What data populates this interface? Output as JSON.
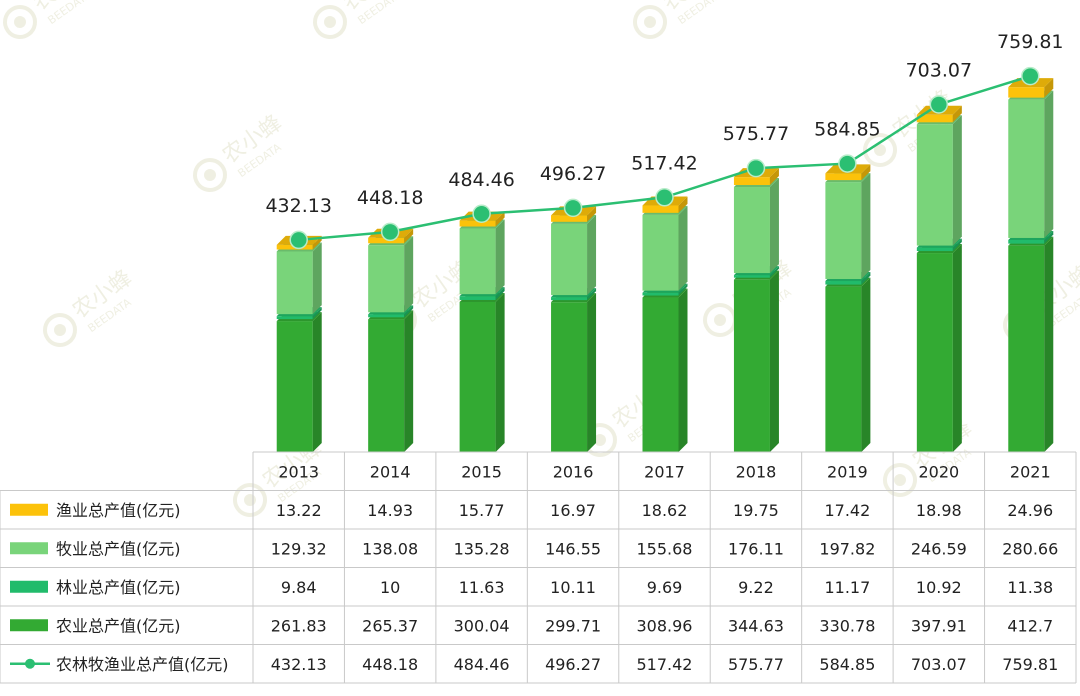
{
  "chart_data": {
    "type": "bar",
    "stacked": true,
    "categories": [
      "2013",
      "2014",
      "2015",
      "2016",
      "2017",
      "2018",
      "2019",
      "2020",
      "2021"
    ],
    "series": [
      {
        "name": "农业总产值(亿元)",
        "color": "#33aa33",
        "values": [
          261.83,
          265.37,
          300.04,
          299.71,
          308.96,
          344.63,
          330.78,
          397.91,
          412.7
        ],
        "labels": [
          "261.83",
          "265.37",
          "300.04",
          "299.71",
          "308.96",
          "344.63",
          "330.78",
          "397.91",
          "412.7"
        ]
      },
      {
        "name": "林业总产值(亿元)",
        "color": "#21bb6b",
        "values": [
          9.84,
          10,
          11.63,
          10.11,
          9.69,
          9.22,
          11.17,
          10.92,
          11.38
        ],
        "labels": [
          "9.84",
          "10",
          "11.63",
          "10.11",
          "9.69",
          "9.22",
          "11.17",
          "10.92",
          "11.38"
        ]
      },
      {
        "name": "牧业总产值(亿元)",
        "color": "#79d47a",
        "values": [
          129.32,
          138.08,
          135.28,
          146.55,
          155.68,
          176.11,
          197.82,
          246.59,
          280.66
        ],
        "labels": [
          "129.32",
          "138.08",
          "135.28",
          "146.55",
          "155.68",
          "176.11",
          "197.82",
          "246.59",
          "280.66"
        ]
      },
      {
        "name": "渔业总产值(亿元)",
        "color": "#fcc20a",
        "values": [
          13.22,
          14.93,
          15.77,
          16.97,
          18.62,
          19.75,
          17.42,
          18.98,
          24.96
        ],
        "labels": [
          "13.22",
          "14.93",
          "15.77",
          "16.97",
          "18.62",
          "19.75",
          "17.42",
          "18.98",
          "24.96"
        ]
      }
    ],
    "line_series": {
      "name": "农林牧渔业总产值(亿元)",
      "color": "#2bbf72",
      "values": [
        432.13,
        448.18,
        484.46,
        496.27,
        517.42,
        575.77,
        584.85,
        703.07,
        759.81
      ],
      "labels": [
        "432.13",
        "448.18",
        "484.46",
        "496.27",
        "517.42",
        "575.77",
        "584.85",
        "703.07",
        "759.81"
      ]
    },
    "table_row_order": [
      3,
      2,
      1,
      0,
      4
    ],
    "ylim": [
      0,
      800
    ],
    "title": "",
    "xlabel": "",
    "ylabel": ""
  },
  "watermark": {
    "brand": "农小蜂",
    "sub": "BEEDATA"
  }
}
